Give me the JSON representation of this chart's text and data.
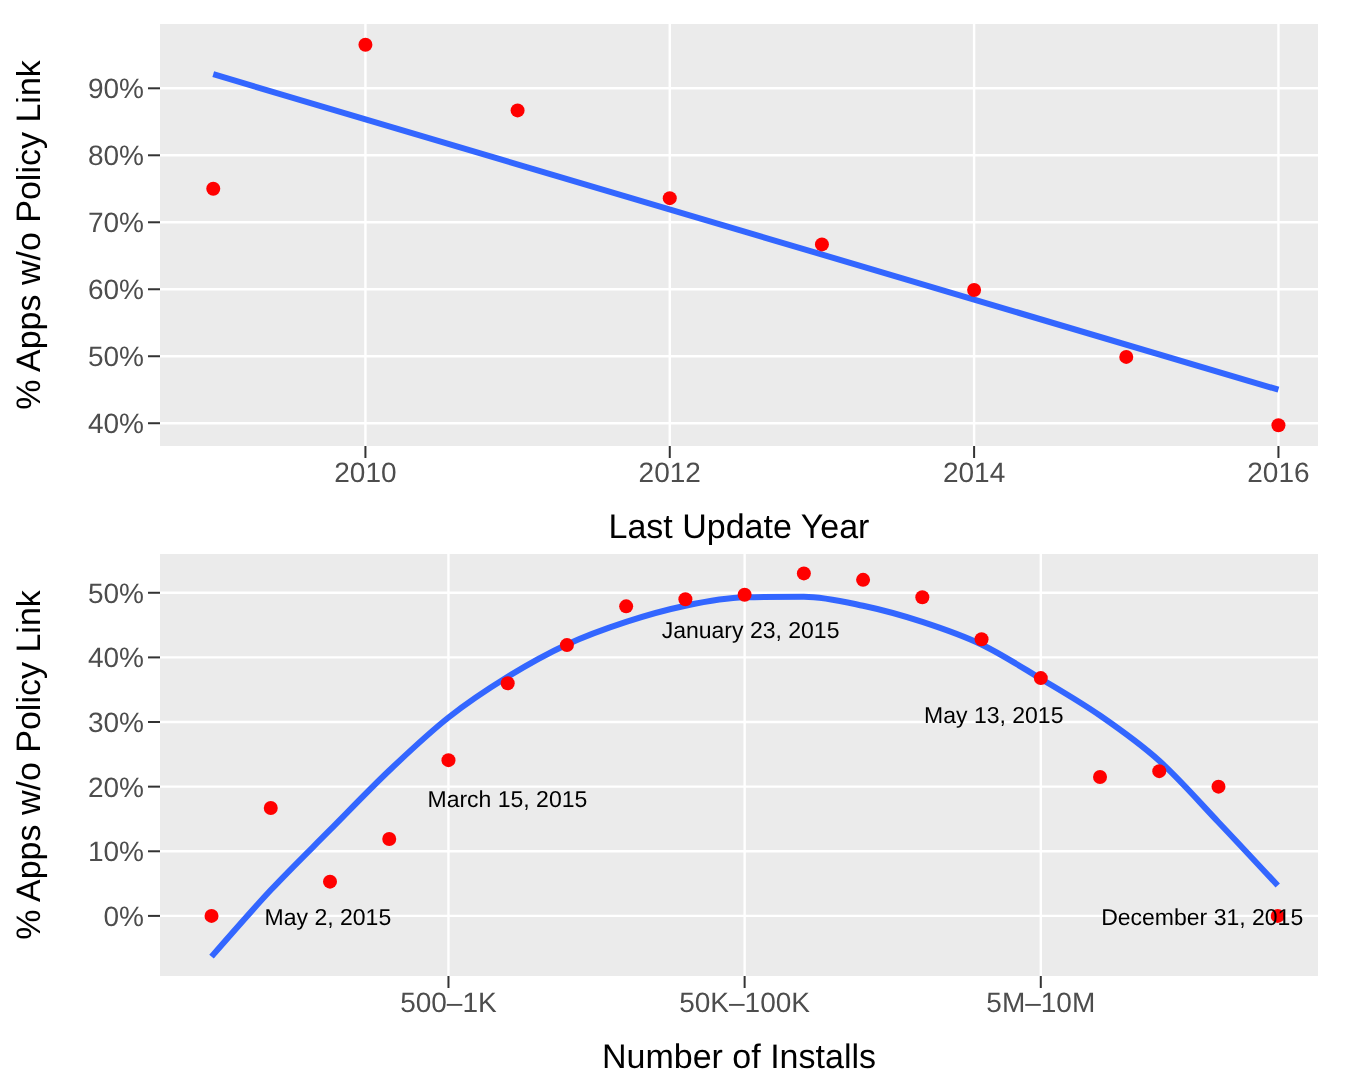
{
  "chart_data": [
    {
      "type": "scatter",
      "xlabel": "Last Update Year",
      "ylabel": "% Apps w/o Policy Link",
      "xlim": [
        2008.65,
        2016.26
      ],
      "xticks": [
        2010,
        2012,
        2014,
        2016
      ],
      "ylim": [
        36.6,
        99.6
      ],
      "yticks": [
        {
          "value": 40,
          "label": "40%"
        },
        {
          "value": 50,
          "label": "50%"
        },
        {
          "value": 60,
          "label": "60%"
        },
        {
          "value": 70,
          "label": "70%"
        },
        {
          "value": 80,
          "label": "80%"
        },
        {
          "value": 90,
          "label": "90%"
        }
      ],
      "grid": true,
      "marker": "circle",
      "series": [
        {
          "color": "#ff0000",
          "x": [
            2009,
            2010,
            2011,
            2012,
            2013,
            2014,
            2015,
            2016
          ],
          "values": [
            75,
            96.5,
            86.7,
            73.6,
            66.7,
            59.9,
            49.9,
            39.7
          ]
        },
        {
          "type": "line",
          "color": "#3366ff",
          "marker": "none",
          "x": [
            2009,
            2016
          ],
          "values": [
            92.1,
            45
          ]
        }
      ]
    },
    {
      "type": "scatter",
      "xlabel": "Number of Installs",
      "ylabel": "% Apps w/o Policy Link",
      "categories": [
        null,
        null,
        null,
        null,
        "500–1K",
        null,
        null,
        null,
        null,
        "50K–100K",
        null,
        null,
        null,
        null,
        "5M–10M",
        null,
        null,
        null,
        null
      ],
      "ylim": [
        -9.3,
        56
      ],
      "yticks": [
        {
          "value": 0,
          "label": "0%"
        },
        {
          "value": 10,
          "label": "10%"
        },
        {
          "value": 20,
          "label": "20%"
        },
        {
          "value": 30,
          "label": "30%"
        },
        {
          "value": 40,
          "label": "40%"
        },
        {
          "value": 50,
          "label": "50%"
        }
      ],
      "grid": true,
      "marker": "circle",
      "annotations": [
        "May 2, 2015",
        "March 15, 2015",
        "January 23, 2015",
        "May 13, 2015",
        "December 31, 2015"
      ],
      "series": [
        {
          "color": "#ff0000",
          "values": [
            0,
            16.7,
            5.3,
            11.9,
            24.1,
            36,
            41.9,
            47.9,
            49,
            49.7,
            53,
            52,
            49.3,
            42.8,
            36.8,
            21.5,
            22.4,
            20,
            0
          ]
        },
        {
          "type": "line",
          "color": "#3366ff",
          "marker": "none",
          "values": [
            -6.3,
            4,
            13.3,
            22.5,
            30.7,
            37,
            42,
            45.5,
            48,
            49.3,
            49.4,
            48,
            45.5,
            42,
            36.7,
            31,
            24,
            14.5,
            4.7
          ]
        }
      ]
    }
  ]
}
